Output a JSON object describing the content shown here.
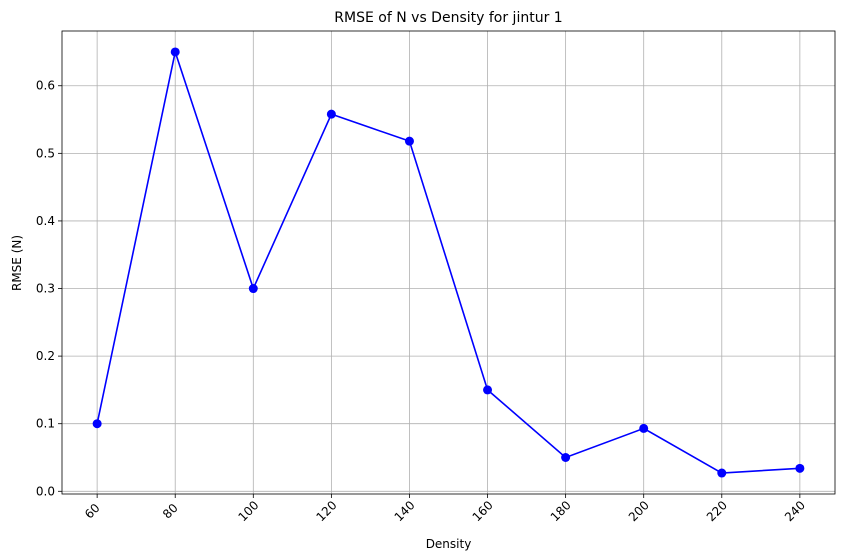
{
  "chart_data": {
    "type": "line",
    "title": "RMSE of N vs Density for jintur 1",
    "xlabel": "Density",
    "ylabel": "RMSE (N)",
    "x": [
      60,
      80,
      100,
      120,
      140,
      160,
      180,
      200,
      220,
      240
    ],
    "series": [
      {
        "values": [
          0.1,
          0.65,
          0.3,
          0.558,
          0.518,
          0.15,
          0.05,
          0.093,
          0.027,
          0.034
        ],
        "color": "#0000ff",
        "marker": "circle"
      }
    ],
    "xticks": [
      60,
      80,
      100,
      120,
      140,
      160,
      180,
      200,
      220,
      240
    ],
    "xtick_labels": [
      "60",
      "80",
      "100",
      "120",
      "140",
      "160",
      "180",
      "200",
      "220",
      "240"
    ],
    "yticks": [
      0.0,
      0.1,
      0.2,
      0.3,
      0.4,
      0.5,
      0.6
    ],
    "ytick_labels": [
      "0.0",
      "0.1",
      "0.2",
      "0.3",
      "0.4",
      "0.5",
      "0.6"
    ],
    "xlim": [
      51,
      249
    ],
    "ylim": [
      -0.004,
      0.681
    ],
    "grid": true,
    "xtick_rotation_deg": 45
  }
}
